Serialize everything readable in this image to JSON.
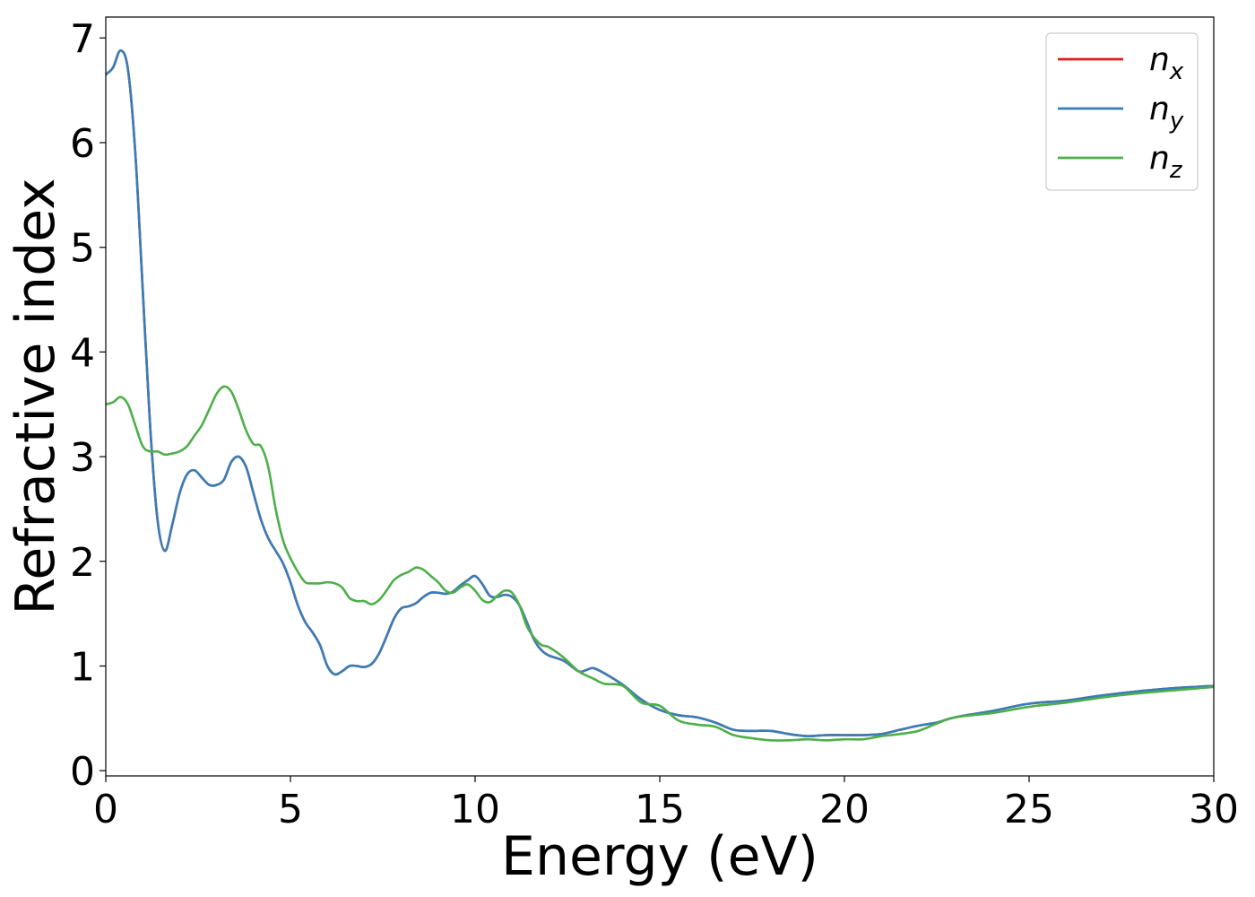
{
  "chart_data": {
    "type": "line",
    "title": "",
    "xlabel": "Energy (eV)",
    "ylabel": "Refractive index",
    "xlim": [
      0,
      30
    ],
    "ylim": [
      -0.05,
      7.2
    ],
    "xticks": [
      0,
      5,
      10,
      15,
      20,
      25,
      30
    ],
    "yticks": [
      0,
      1,
      2,
      3,
      4,
      5,
      6,
      7
    ],
    "grid": false,
    "legend_position": "top-right",
    "series": [
      {
        "name": "n",
        "subscript": "x",
        "color": "#e41a1c",
        "points": [
          [
            0,
            6.65
          ],
          [
            0.2,
            6.72
          ],
          [
            0.4,
            6.88
          ],
          [
            0.6,
            6.7
          ],
          [
            0.8,
            5.9
          ],
          [
            1.0,
            4.6
          ],
          [
            1.2,
            3.3
          ],
          [
            1.4,
            2.4
          ],
          [
            1.6,
            2.1
          ],
          [
            1.8,
            2.35
          ],
          [
            2.0,
            2.65
          ],
          [
            2.2,
            2.83
          ],
          [
            2.4,
            2.87
          ],
          [
            2.6,
            2.8
          ],
          [
            2.8,
            2.73
          ],
          [
            3.0,
            2.73
          ],
          [
            3.2,
            2.78
          ],
          [
            3.4,
            2.95
          ],
          [
            3.6,
            3.0
          ],
          [
            3.8,
            2.9
          ],
          [
            4.0,
            2.65
          ],
          [
            4.2,
            2.4
          ],
          [
            4.4,
            2.22
          ],
          [
            4.6,
            2.1
          ],
          [
            4.8,
            1.98
          ],
          [
            5.0,
            1.8
          ],
          [
            5.2,
            1.58
          ],
          [
            5.4,
            1.42
          ],
          [
            5.6,
            1.32
          ],
          [
            5.8,
            1.2
          ],
          [
            6.0,
            1.0
          ],
          [
            6.2,
            0.92
          ],
          [
            6.4,
            0.95
          ],
          [
            6.6,
            1.0
          ],
          [
            6.8,
            1.0
          ],
          [
            7.0,
            0.99
          ],
          [
            7.2,
            1.02
          ],
          [
            7.4,
            1.12
          ],
          [
            7.6,
            1.28
          ],
          [
            7.8,
            1.45
          ],
          [
            8.0,
            1.55
          ],
          [
            8.2,
            1.57
          ],
          [
            8.4,
            1.6
          ],
          [
            8.6,
            1.66
          ],
          [
            8.8,
            1.7
          ],
          [
            9.0,
            1.7
          ],
          [
            9.2,
            1.69
          ],
          [
            9.4,
            1.71
          ],
          [
            9.6,
            1.77
          ],
          [
            9.8,
            1.82
          ],
          [
            10.0,
            1.86
          ],
          [
            10.2,
            1.78
          ],
          [
            10.4,
            1.67
          ],
          [
            10.6,
            1.66
          ],
          [
            10.8,
            1.68
          ],
          [
            11.0,
            1.66
          ],
          [
            11.2,
            1.58
          ],
          [
            11.4,
            1.42
          ],
          [
            11.6,
            1.25
          ],
          [
            11.8,
            1.15
          ],
          [
            12.0,
            1.1
          ],
          [
            12.4,
            1.05
          ],
          [
            12.8,
            0.95
          ],
          [
            13.0,
            0.96
          ],
          [
            13.2,
            0.98
          ],
          [
            13.5,
            0.93
          ],
          [
            14.0,
            0.82
          ],
          [
            14.5,
            0.68
          ],
          [
            15.0,
            0.58
          ],
          [
            15.5,
            0.53
          ],
          [
            16.0,
            0.51
          ],
          [
            16.5,
            0.46
          ],
          [
            17.0,
            0.39
          ],
          [
            17.5,
            0.38
          ],
          [
            18.0,
            0.38
          ],
          [
            18.5,
            0.35
          ],
          [
            19.0,
            0.33
          ],
          [
            19.5,
            0.34
          ],
          [
            20.0,
            0.34
          ],
          [
            20.5,
            0.34
          ],
          [
            21.0,
            0.35
          ],
          [
            21.5,
            0.39
          ],
          [
            22.0,
            0.43
          ],
          [
            22.5,
            0.46
          ],
          [
            23.0,
            0.51
          ],
          [
            24.0,
            0.57
          ],
          [
            25.0,
            0.64
          ],
          [
            26.0,
            0.67
          ],
          [
            27.0,
            0.72
          ],
          [
            28.0,
            0.76
          ],
          [
            29.0,
            0.79
          ],
          [
            30.0,
            0.81
          ]
        ]
      },
      {
        "name": "n",
        "subscript": "y",
        "color": "#377eb8",
        "points": [
          [
            0,
            6.65
          ],
          [
            0.2,
            6.72
          ],
          [
            0.4,
            6.88
          ],
          [
            0.6,
            6.7
          ],
          [
            0.8,
            5.9
          ],
          [
            1.0,
            4.6
          ],
          [
            1.2,
            3.3
          ],
          [
            1.4,
            2.4
          ],
          [
            1.6,
            2.1
          ],
          [
            1.8,
            2.35
          ],
          [
            2.0,
            2.65
          ],
          [
            2.2,
            2.83
          ],
          [
            2.4,
            2.87
          ],
          [
            2.6,
            2.8
          ],
          [
            2.8,
            2.73
          ],
          [
            3.0,
            2.73
          ],
          [
            3.2,
            2.78
          ],
          [
            3.4,
            2.95
          ],
          [
            3.6,
            3.0
          ],
          [
            3.8,
            2.9
          ],
          [
            4.0,
            2.65
          ],
          [
            4.2,
            2.4
          ],
          [
            4.4,
            2.22
          ],
          [
            4.6,
            2.1
          ],
          [
            4.8,
            1.98
          ],
          [
            5.0,
            1.8
          ],
          [
            5.2,
            1.58
          ],
          [
            5.4,
            1.42
          ],
          [
            5.6,
            1.32
          ],
          [
            5.8,
            1.2
          ],
          [
            6.0,
            1.0
          ],
          [
            6.2,
            0.92
          ],
          [
            6.4,
            0.95
          ],
          [
            6.6,
            1.0
          ],
          [
            6.8,
            1.0
          ],
          [
            7.0,
            0.99
          ],
          [
            7.2,
            1.02
          ],
          [
            7.4,
            1.12
          ],
          [
            7.6,
            1.28
          ],
          [
            7.8,
            1.45
          ],
          [
            8.0,
            1.55
          ],
          [
            8.2,
            1.57
          ],
          [
            8.4,
            1.6
          ],
          [
            8.6,
            1.66
          ],
          [
            8.8,
            1.7
          ],
          [
            9.0,
            1.7
          ],
          [
            9.2,
            1.69
          ],
          [
            9.4,
            1.71
          ],
          [
            9.6,
            1.77
          ],
          [
            9.8,
            1.82
          ],
          [
            10.0,
            1.86
          ],
          [
            10.2,
            1.78
          ],
          [
            10.4,
            1.67
          ],
          [
            10.6,
            1.66
          ],
          [
            10.8,
            1.68
          ],
          [
            11.0,
            1.66
          ],
          [
            11.2,
            1.58
          ],
          [
            11.4,
            1.42
          ],
          [
            11.6,
            1.25
          ],
          [
            11.8,
            1.15
          ],
          [
            12.0,
            1.1
          ],
          [
            12.4,
            1.05
          ],
          [
            12.8,
            0.95
          ],
          [
            13.0,
            0.96
          ],
          [
            13.2,
            0.98
          ],
          [
            13.5,
            0.93
          ],
          [
            14.0,
            0.82
          ],
          [
            14.5,
            0.68
          ],
          [
            15.0,
            0.58
          ],
          [
            15.5,
            0.53
          ],
          [
            16.0,
            0.51
          ],
          [
            16.5,
            0.46
          ],
          [
            17.0,
            0.39
          ],
          [
            17.5,
            0.38
          ],
          [
            18.0,
            0.38
          ],
          [
            18.5,
            0.35
          ],
          [
            19.0,
            0.33
          ],
          [
            19.5,
            0.34
          ],
          [
            20.0,
            0.34
          ],
          [
            20.5,
            0.34
          ],
          [
            21.0,
            0.35
          ],
          [
            21.5,
            0.39
          ],
          [
            22.0,
            0.43
          ],
          [
            22.5,
            0.46
          ],
          [
            23.0,
            0.51
          ],
          [
            24.0,
            0.57
          ],
          [
            25.0,
            0.64
          ],
          [
            26.0,
            0.67
          ],
          [
            27.0,
            0.72
          ],
          [
            28.0,
            0.76
          ],
          [
            29.0,
            0.79
          ],
          [
            30.0,
            0.81
          ]
        ]
      },
      {
        "name": "n",
        "subscript": "z",
        "color": "#4daf4a",
        "points": [
          [
            0,
            3.5
          ],
          [
            0.2,
            3.52
          ],
          [
            0.4,
            3.57
          ],
          [
            0.6,
            3.5
          ],
          [
            0.8,
            3.3
          ],
          [
            1.0,
            3.1
          ],
          [
            1.2,
            3.05
          ],
          [
            1.4,
            3.05
          ],
          [
            1.6,
            3.02
          ],
          [
            1.8,
            3.03
          ],
          [
            2.0,
            3.05
          ],
          [
            2.2,
            3.1
          ],
          [
            2.4,
            3.2
          ],
          [
            2.6,
            3.3
          ],
          [
            2.8,
            3.45
          ],
          [
            3.0,
            3.6
          ],
          [
            3.2,
            3.67
          ],
          [
            3.4,
            3.62
          ],
          [
            3.6,
            3.45
          ],
          [
            3.8,
            3.25
          ],
          [
            4.0,
            3.12
          ],
          [
            4.2,
            3.1
          ],
          [
            4.4,
            2.9
          ],
          [
            4.6,
            2.5
          ],
          [
            4.8,
            2.2
          ],
          [
            5.0,
            2.03
          ],
          [
            5.2,
            1.9
          ],
          [
            5.4,
            1.8
          ],
          [
            5.6,
            1.79
          ],
          [
            5.8,
            1.79
          ],
          [
            6.0,
            1.8
          ],
          [
            6.2,
            1.79
          ],
          [
            6.4,
            1.75
          ],
          [
            6.6,
            1.65
          ],
          [
            6.8,
            1.62
          ],
          [
            7.0,
            1.62
          ],
          [
            7.2,
            1.59
          ],
          [
            7.4,
            1.63
          ],
          [
            7.6,
            1.72
          ],
          [
            7.8,
            1.82
          ],
          [
            8.0,
            1.87
          ],
          [
            8.2,
            1.9
          ],
          [
            8.4,
            1.94
          ],
          [
            8.6,
            1.92
          ],
          [
            8.8,
            1.86
          ],
          [
            9.0,
            1.8
          ],
          [
            9.2,
            1.72
          ],
          [
            9.4,
            1.7
          ],
          [
            9.6,
            1.75
          ],
          [
            9.8,
            1.78
          ],
          [
            10.0,
            1.72
          ],
          [
            10.2,
            1.63
          ],
          [
            10.4,
            1.61
          ],
          [
            10.6,
            1.67
          ],
          [
            10.8,
            1.72
          ],
          [
            11.0,
            1.7
          ],
          [
            11.2,
            1.58
          ],
          [
            11.4,
            1.38
          ],
          [
            11.6,
            1.27
          ],
          [
            11.8,
            1.2
          ],
          [
            12.0,
            1.18
          ],
          [
            12.4,
            1.08
          ],
          [
            12.8,
            0.95
          ],
          [
            13.2,
            0.88
          ],
          [
            13.5,
            0.83
          ],
          [
            14.0,
            0.81
          ],
          [
            14.5,
            0.65
          ],
          [
            15.0,
            0.62
          ],
          [
            15.5,
            0.48
          ],
          [
            16.0,
            0.44
          ],
          [
            16.5,
            0.42
          ],
          [
            17.0,
            0.34
          ],
          [
            17.5,
            0.31
          ],
          [
            18.0,
            0.29
          ],
          [
            18.5,
            0.29
          ],
          [
            19.0,
            0.3
          ],
          [
            19.5,
            0.29
          ],
          [
            20.0,
            0.3
          ],
          [
            20.5,
            0.3
          ],
          [
            21.0,
            0.33
          ],
          [
            21.5,
            0.35
          ],
          [
            22.0,
            0.38
          ],
          [
            22.5,
            0.45
          ],
          [
            23.0,
            0.51
          ],
          [
            24.0,
            0.55
          ],
          [
            25.0,
            0.61
          ],
          [
            26.0,
            0.65
          ],
          [
            27.0,
            0.7
          ],
          [
            28.0,
            0.74
          ],
          [
            29.0,
            0.77
          ],
          [
            30.0,
            0.8
          ]
        ]
      }
    ]
  }
}
